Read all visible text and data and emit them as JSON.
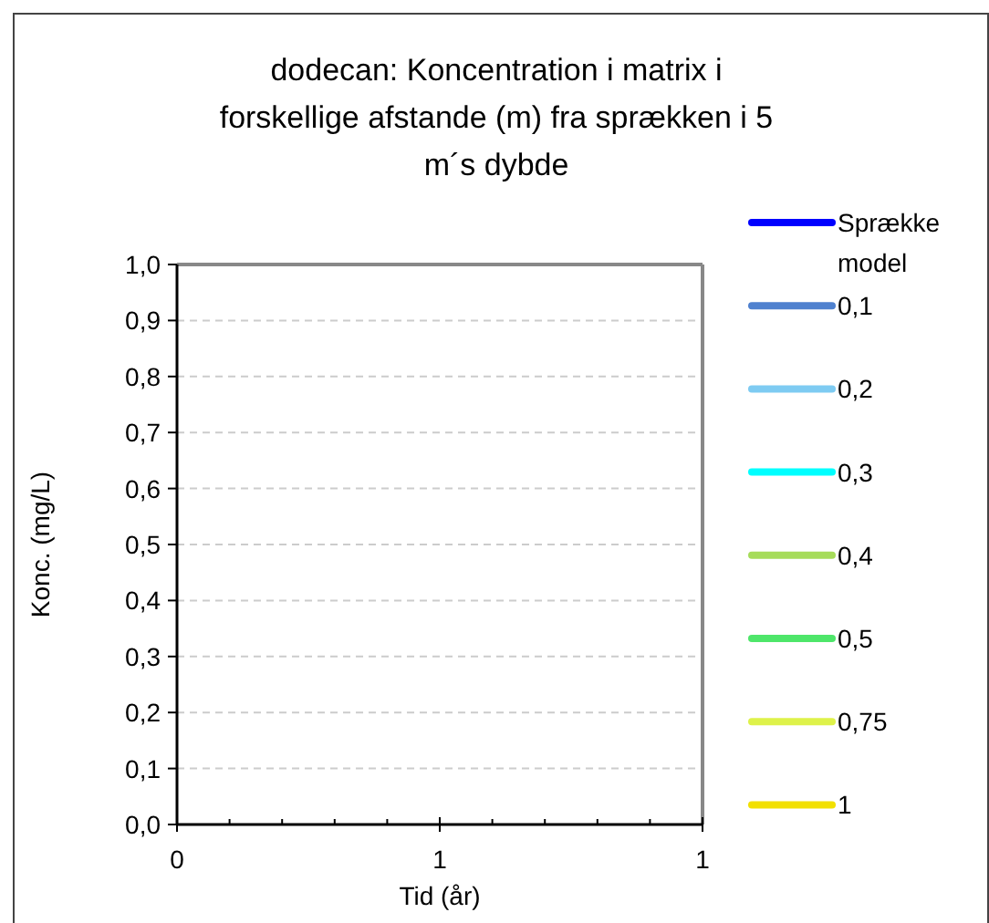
{
  "chart_data": {
    "type": "line",
    "title": "dodecan: Koncentration i matrix i forskellige afstande (m) fra sprækken i 5 m´s dybde",
    "xlabel": "Tid (år)",
    "ylabel": "Konc. (mg/L)",
    "categories": [
      "0",
      "1",
      "1"
    ],
    "ylim": [
      0,
      1
    ],
    "yticks": [
      {
        "value": 0,
        "label": "0,0"
      },
      {
        "value": 0.1,
        "label": "0,1"
      },
      {
        "value": 0.2,
        "label": "0,2"
      },
      {
        "value": 0.3,
        "label": "0,3"
      },
      {
        "value": 0.4,
        "label": "0,4"
      },
      {
        "value": 0.5,
        "label": "0,5"
      },
      {
        "value": 0.6,
        "label": "0,6"
      },
      {
        "value": 0.7,
        "label": "0,7"
      },
      {
        "value": 0.8,
        "label": "0,8"
      },
      {
        "value": 0.9,
        "label": "0,9"
      },
      {
        "value": 1,
        "label": "1,0"
      }
    ],
    "grid": "y",
    "legend": "right",
    "series": [
      {
        "name": "Sprække model",
        "color": "#0000ff",
        "values": [
          null,
          null,
          null
        ]
      },
      {
        "name": "0,1",
        "color": "#4f81cf",
        "values": [
          null,
          null,
          null
        ]
      },
      {
        "name": "0,2",
        "color": "#7ecbf2",
        "values": [
          null,
          null,
          null
        ]
      },
      {
        "name": "0,3",
        "color": "#00ffff",
        "values": [
          null,
          null,
          null
        ]
      },
      {
        "name": "0,4",
        "color": "#a6dc5a",
        "values": [
          null,
          null,
          null
        ]
      },
      {
        "name": "0,5",
        "color": "#4ee66a",
        "values": [
          null,
          null,
          null
        ]
      },
      {
        "name": "0,75",
        "color": "#def24a",
        "values": [
          null,
          null,
          null
        ]
      },
      {
        "name": "1",
        "color": "#f2e000",
        "values": [
          null,
          null,
          null
        ]
      }
    ]
  }
}
